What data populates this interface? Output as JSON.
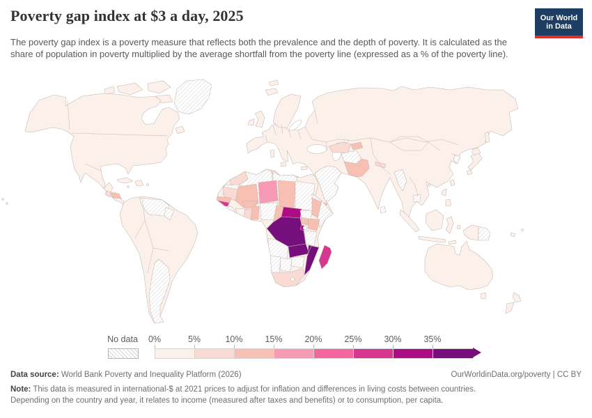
{
  "header": {
    "title": "Poverty gap index at $3 a day, 2025",
    "subtitle": "The poverty gap index is a poverty measure that reflects both the prevalence and the depth of poverty. It is calculated as the share of population in poverty multiplied by the average shortfall from the poverty line (expressed as a % of the poverty line).",
    "logo": {
      "line1": "Our World",
      "line2": "in Data",
      "bg": "#1d3d63",
      "accent": "#e0302c"
    }
  },
  "legend": {
    "no_data_label": "No data",
    "tick_labels": [
      "0%",
      "5%",
      "10%",
      "15%",
      "20%",
      "25%",
      "30%",
      "35%"
    ],
    "colors": [
      "#fcf0eb",
      "#fadbd4",
      "#f8c0b2",
      "#f899b5",
      "#f4679e",
      "#d8378f",
      "#ad0c84",
      "#760f7c"
    ]
  },
  "map": {
    "border_color": "#c4b5b0",
    "hatch_color": "#d6d2d6",
    "ocean_color": "#ffffff"
  },
  "footer": {
    "data_source_label": "Data source:",
    "data_source": " World Bank Poverty and Inequality Platform (2026)",
    "attribution": "OurWorldinData.org/poverty | CC BY",
    "note_label": "Note:",
    "note": " This data is measured in international-$ at 2021 prices to adjust for inflation and differences in living costs between countries. Depending on the country and year, it relates to income (measured after taxes and benefits) or to consumption, per capita."
  },
  "chart_data": {
    "type": "choropleth",
    "title": "Poverty gap index at $3 a day, 2025",
    "unit": "%",
    "legend_bins": [
      {
        "label": "0%–5%",
        "color": "#fcf0eb"
      },
      {
        "label": "5%–10%",
        "color": "#fadbd4"
      },
      {
        "label": "10%–15%",
        "color": "#f8c0b2"
      },
      {
        "label": "15%–20%",
        "color": "#f899b5"
      },
      {
        "label": "20%–25%",
        "color": "#f4679e"
      },
      {
        "label": "25%–30%",
        "color": "#d8378f"
      },
      {
        "label": "30%–35%",
        "color": "#ad0c84"
      },
      {
        "label": "35%+",
        "color": "#760f7c"
      },
      {
        "label": "No data",
        "pattern": "diagonal-hatch"
      }
    ],
    "regions_by_bin": {
      "35%+": [
        "Democratic Republic of Congo",
        "Zambia",
        "Malawi",
        "Mozambique"
      ],
      "30-35%": [
        "Central African Republic",
        "Burundi",
        "Rwanda"
      ],
      "25-30%": [
        "Madagascar",
        "Gambia / Guinea-Bissau"
      ],
      "15-20%": [
        "Niger"
      ],
      "10-15%": [
        "Mali",
        "Chad",
        "Burkina Faso",
        "Benin & Togo",
        "Senegal",
        "Cameroon",
        "Ethiopia",
        "Kenya",
        "Uganda",
        "Pakistan",
        "Honduras"
      ],
      "5-10%": [
        "Morocco",
        "Mauritania",
        "Ghana",
        "Sierra Leone",
        "South Africa",
        "Turkmenistan & Uzbekistan",
        "Nepal",
        "Guatemala"
      ],
      "0-5%": [
        "United States",
        "Canada",
        "Mexico",
        "Brazil",
        "Peru",
        "Colombia",
        "Europe",
        "Russia",
        "China",
        "India",
        "Iran",
        "Indonesia",
        "Australia",
        "Egypt",
        "Tunisia",
        "Japan"
      ],
      "no_data": [
        "Greenland",
        "Venezuela",
        "Guyana & Suriname",
        "Argentina",
        "Algeria",
        "Libya",
        "Western Sahara",
        "Sudan",
        "South Sudan",
        "Eritrea",
        "Somalia",
        "Nigeria",
        "Guinea",
        "Angola",
        "Namibia",
        "Botswana",
        "Zimbabwe",
        "Tanzania",
        "Saudi Arabia & Gulf states",
        "Afghanistan",
        "Myanmar",
        "Cambodia",
        "North Korea",
        "Sri Lanka",
        "Papua New Guinea"
      ]
    }
  }
}
